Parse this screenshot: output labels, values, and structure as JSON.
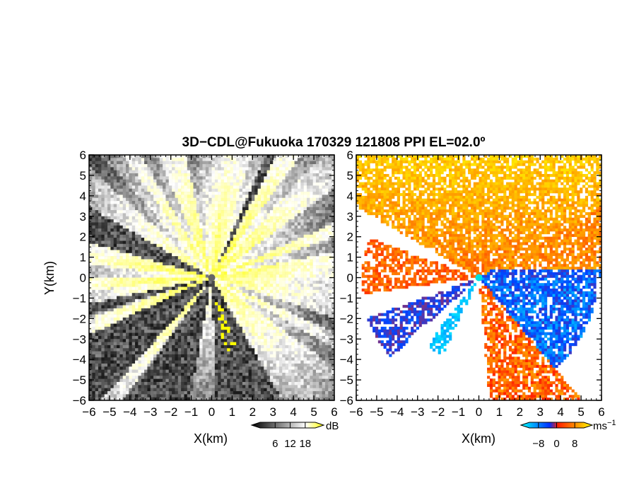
{
  "figure": {
    "title": "3D−CDL@Fukuoka 170329 121808 PPI EL=02.0º"
  },
  "chart_data": [
    {
      "type": "heatmap",
      "panel": "left",
      "quantity_units": "dB",
      "xlabel": "X(km)",
      "ylabel": "Y(km)",
      "xlim": [
        -6,
        6
      ],
      "ylim": [
        -6,
        6
      ],
      "xticks": [
        "−6",
        "−5",
        "−4",
        "−3",
        "−2",
        "−1",
        "0",
        "1",
        "2",
        "3",
        "4",
        "5",
        "6"
      ],
      "yticks": [
        "−6",
        "−5",
        "−4",
        "−3",
        "−2",
        "−1",
        "0",
        "1",
        "2",
        "3",
        "4",
        "5",
        "6"
      ],
      "colorbar": {
        "unit": "dB",
        "tick_labels": [
          "6",
          "12",
          "18"
        ],
        "ticks": [
          6,
          12,
          18
        ],
        "range": [
          0,
          22
        ]
      },
      "colormap": [
        "#000000",
        "#ffffff",
        "#ffff00"
      ],
      "grid": false
    },
    {
      "type": "heatmap",
      "panel": "right",
      "quantity_units": "ms⁻¹",
      "xlabel": "X(km)",
      "xlim": [
        -6,
        6
      ],
      "ylim": [
        -6,
        6
      ],
      "xticks": [
        "−6",
        "−5",
        "−4",
        "−3",
        "−2",
        "−1",
        "0",
        "1",
        "2",
        "3",
        "4",
        "5",
        "6"
      ],
      "yticks": [
        "−6",
        "−5",
        "−4",
        "−3",
        "−2",
        "−1",
        "0",
        "1",
        "2",
        "3",
        "4",
        "5",
        "6"
      ],
      "colorbar": {
        "unit": "ms",
        "unit_sup": "−1",
        "tick_labels": [
          "−8",
          "0",
          "8"
        ],
        "ticks": [
          -8,
          0,
          8
        ],
        "range": [
          -12,
          12
        ]
      },
      "colormap": [
        "#00ffff",
        "#0040ff",
        "#ff2000",
        "#ffa000",
        "#ffff00"
      ],
      "grid": false
    }
  ]
}
